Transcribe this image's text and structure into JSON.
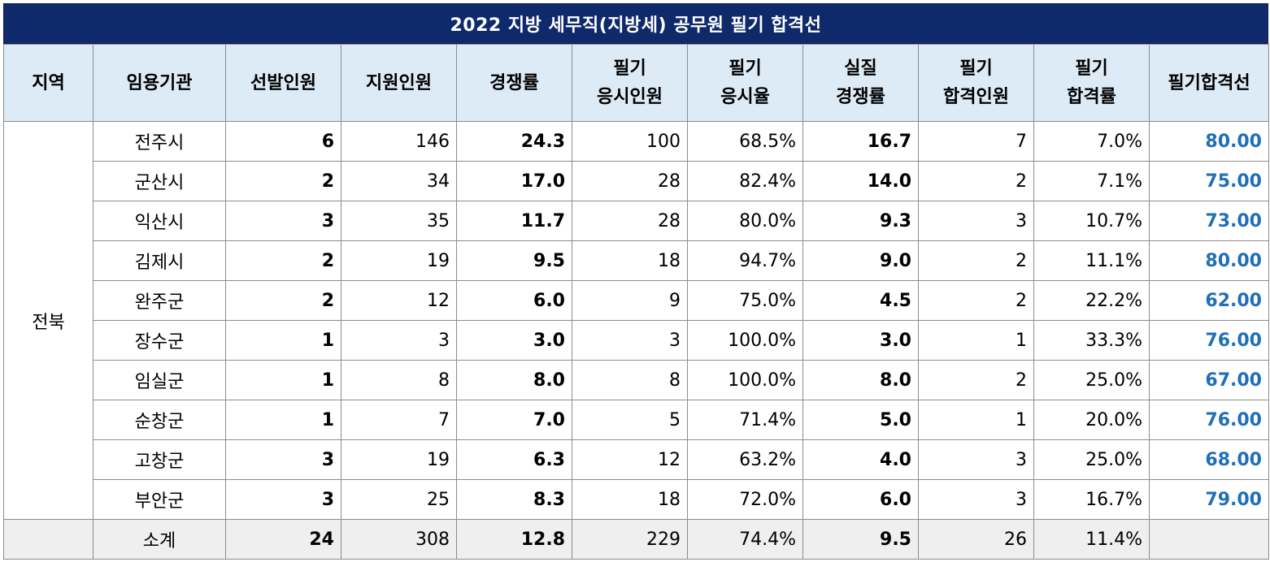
{
  "title": "2022 지방 세무직(지방세) 공무원 필기 합격선",
  "headers": [
    {
      "line1": "지역",
      "line2": ""
    },
    {
      "line1": "임용기관",
      "line2": ""
    },
    {
      "line1": "선발인원",
      "line2": ""
    },
    {
      "line1": "지원인원",
      "line2": ""
    },
    {
      "line1": "경쟁률",
      "line2": ""
    },
    {
      "line1": "필기",
      "line2": "응시인원"
    },
    {
      "line1": "필기",
      "line2": "응시율"
    },
    {
      "line1": "실질",
      "line2": "경쟁률"
    },
    {
      "line1": "필기",
      "line2": "합격인원"
    },
    {
      "line1": "필기",
      "line2": "합격률"
    },
    {
      "line1": "필기합격선",
      "line2": ""
    }
  ],
  "region": "전북",
  "rows": [
    {
      "org": "전주시",
      "select": "6",
      "apply": "146",
      "ratio": "24.3",
      "takers": "100",
      "take_rate": "68.5%",
      "real_ratio": "16.7",
      "passed": "7",
      "pass_rate": "7.0%",
      "cutoff": "80.00"
    },
    {
      "org": "군산시",
      "select": "2",
      "apply": "34",
      "ratio": "17.0",
      "takers": "28",
      "take_rate": "82.4%",
      "real_ratio": "14.0",
      "passed": "2",
      "pass_rate": "7.1%",
      "cutoff": "75.00"
    },
    {
      "org": "익산시",
      "select": "3",
      "apply": "35",
      "ratio": "11.7",
      "takers": "28",
      "take_rate": "80.0%",
      "real_ratio": "9.3",
      "passed": "3",
      "pass_rate": "10.7%",
      "cutoff": "73.00"
    },
    {
      "org": "김제시",
      "select": "2",
      "apply": "19",
      "ratio": "9.5",
      "takers": "18",
      "take_rate": "94.7%",
      "real_ratio": "9.0",
      "passed": "2",
      "pass_rate": "11.1%",
      "cutoff": "80.00"
    },
    {
      "org": "완주군",
      "select": "2",
      "apply": "12",
      "ratio": "6.0",
      "takers": "9",
      "take_rate": "75.0%",
      "real_ratio": "4.5",
      "passed": "2",
      "pass_rate": "22.2%",
      "cutoff": "62.00"
    },
    {
      "org": "장수군",
      "select": "1",
      "apply": "3",
      "ratio": "3.0",
      "takers": "3",
      "take_rate": "100.0%",
      "real_ratio": "3.0",
      "passed": "1",
      "pass_rate": "33.3%",
      "cutoff": "76.00"
    },
    {
      "org": "임실군",
      "select": "1",
      "apply": "8",
      "ratio": "8.0",
      "takers": "8",
      "take_rate": "100.0%",
      "real_ratio": "8.0",
      "passed": "2",
      "pass_rate": "25.0%",
      "cutoff": "67.00"
    },
    {
      "org": "순창군",
      "select": "1",
      "apply": "7",
      "ratio": "7.0",
      "takers": "5",
      "take_rate": "71.4%",
      "real_ratio": "5.0",
      "passed": "1",
      "pass_rate": "20.0%",
      "cutoff": "76.00"
    },
    {
      "org": "고창군",
      "select": "3",
      "apply": "19",
      "ratio": "6.3",
      "takers": "12",
      "take_rate": "63.2%",
      "real_ratio": "4.0",
      "passed": "3",
      "pass_rate": "25.0%",
      "cutoff": "68.00"
    },
    {
      "org": "부안군",
      "select": "3",
      "apply": "25",
      "ratio": "8.3",
      "takers": "18",
      "take_rate": "72.0%",
      "real_ratio": "6.0",
      "passed": "3",
      "pass_rate": "16.7%",
      "cutoff": "79.00"
    }
  ],
  "subtotal": {
    "org": "소계",
    "select": "24",
    "apply": "308",
    "ratio": "12.8",
    "takers": "229",
    "take_rate": "74.4%",
    "real_ratio": "9.5",
    "passed": "26",
    "pass_rate": "11.4%",
    "cutoff": ""
  },
  "colors": {
    "title_bg": "#0f2a6b",
    "header_bg": "#ddebf7",
    "cutoff_text": "#1f6fb8",
    "subtotal_bg": "#efefef"
  }
}
